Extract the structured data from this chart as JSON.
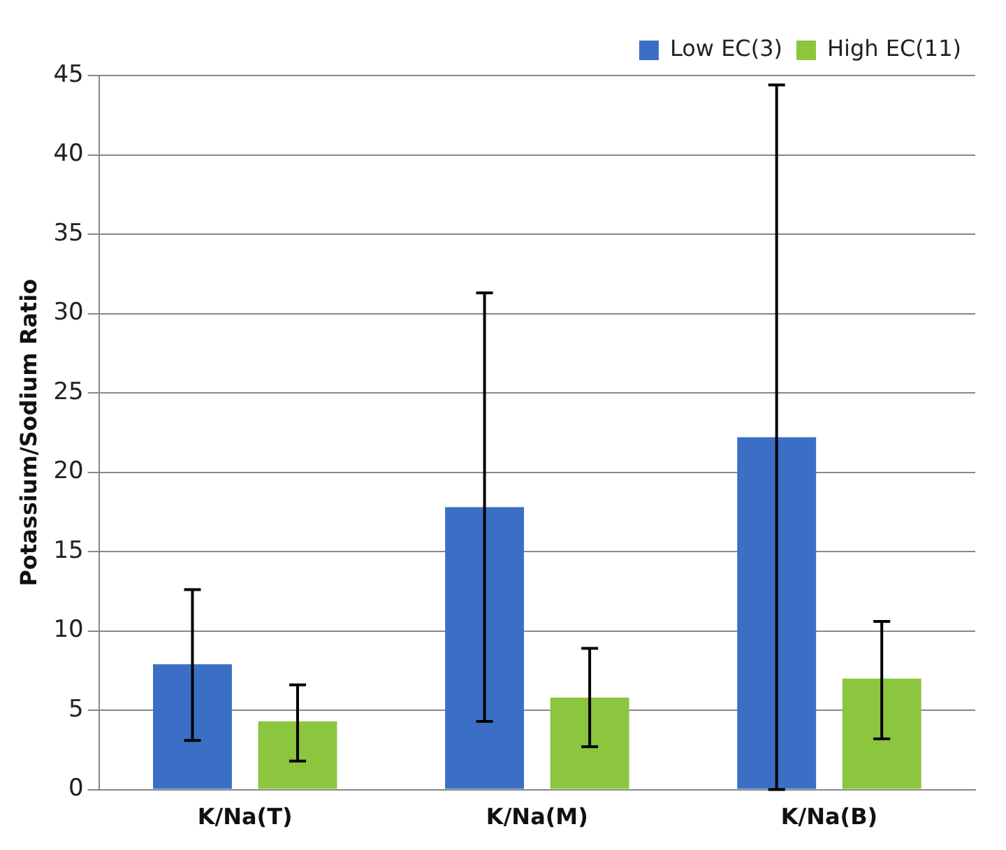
{
  "chart_data": {
    "type": "bar",
    "ylabel": "Potassium/Sodium Ratio",
    "categories": [
      "K/Na(T)",
      "K/Na(M)",
      "K/Na(B)"
    ],
    "series": [
      {
        "name": "Low EC(3)",
        "color": "#3b6fc6",
        "values": [
          7.9,
          17.8,
          22.2
        ],
        "errors": [
          [
            3.1,
            12.6
          ],
          [
            4.3,
            31.3
          ],
          [
            0,
            44.4
          ]
        ]
      },
      {
        "name": "High EC(11)",
        "color": "#8cc63e",
        "values": [
          4.3,
          5.8,
          7.0
        ],
        "errors": [
          [
            1.8,
            6.6
          ],
          [
            2.7,
            8.9
          ],
          [
            3.2,
            10.6
          ]
        ]
      }
    ],
    "ylim": [
      0,
      45
    ],
    "yticks": [
      0,
      5,
      10,
      15,
      20,
      25,
      30,
      35,
      40,
      45
    ],
    "grid": "y",
    "legend": "top"
  }
}
